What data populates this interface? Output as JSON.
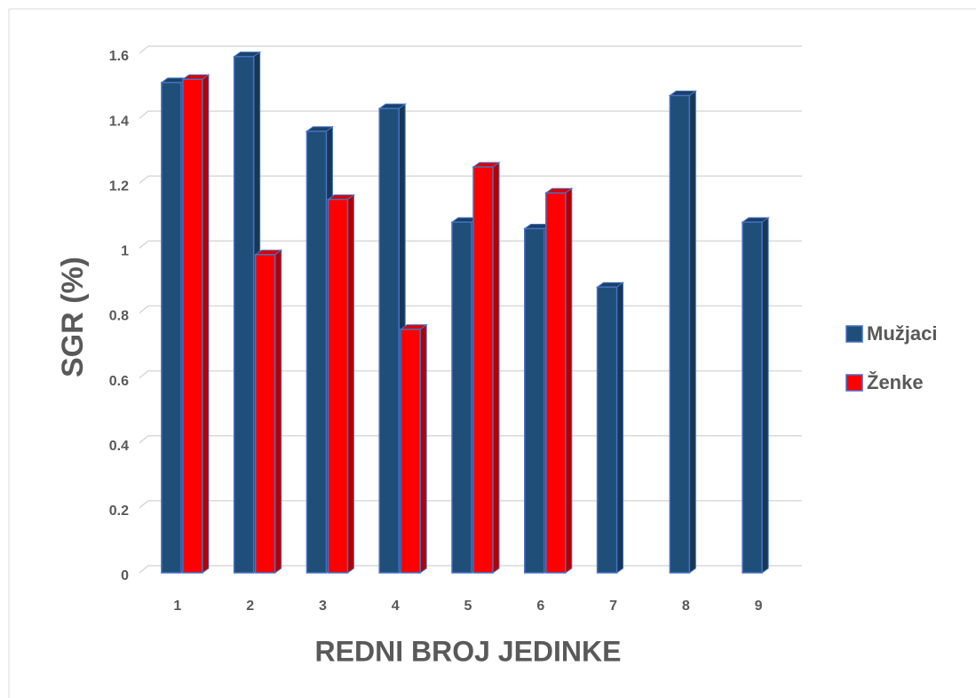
{
  "chart_data": {
    "type": "bar3d",
    "xlabel": "REDNI BROJ JEDINKE",
    "ylabel": "SGR (%)",
    "categories": [
      "1",
      "2",
      "3",
      "4",
      "5",
      "6",
      "7",
      "8",
      "9"
    ],
    "series": [
      {
        "name": "Mužjaci",
        "color": "#1f4e79",
        "values": [
          1.51,
          1.59,
          1.36,
          1.43,
          1.08,
          1.06,
          0.88,
          1.47,
          1.08
        ]
      },
      {
        "name": "Ženke",
        "color": "#ff0000",
        "values": [
          1.52,
          0.98,
          1.15,
          0.75,
          1.25,
          1.17,
          null,
          null,
          null
        ]
      }
    ],
    "ylim": [
      0,
      1.6
    ],
    "yticks": [
      0,
      0.2,
      0.4,
      0.6,
      0.8,
      1,
      1.2,
      1.4,
      1.6
    ],
    "grid": true,
    "legend": "right"
  }
}
